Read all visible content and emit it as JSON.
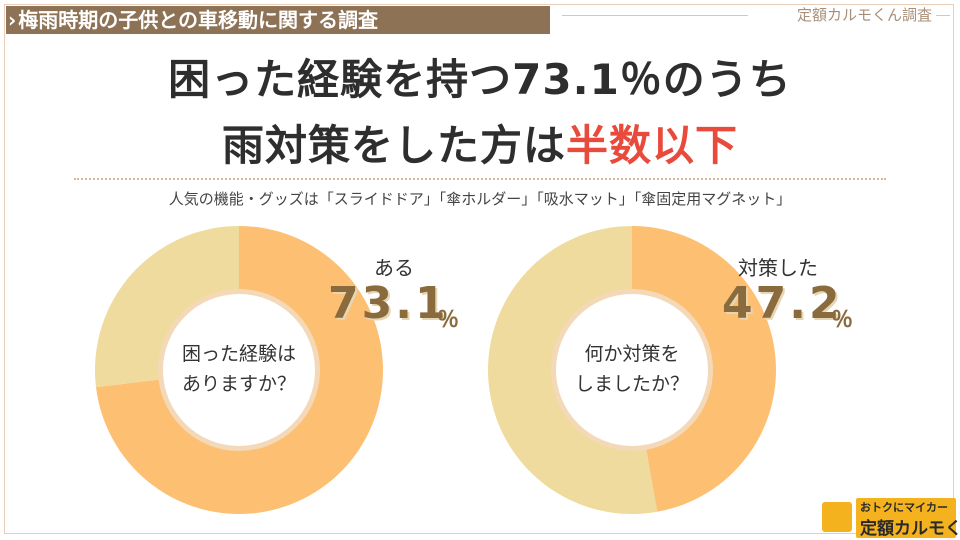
{
  "header": {
    "tag": "梅雨時期の子供との車移動に関する調査",
    "brand": "定額カルモくん調査"
  },
  "headline": {
    "line1": "困った経験を持つ73.1％のうち",
    "line2_prefix": "雨対策をした方は",
    "line2_highlight": "半数以下"
  },
  "subtitle": "人気の機能・グッズは「スライドドア」「傘ホルダー」「吸水マット」「傘固定用マグネット」",
  "colors": {
    "primary": "#fdbf72",
    "secondary": "#eedb9d",
    "highlight": "#e84a3c",
    "value_text": "#8a6b3e"
  },
  "chart_data": [
    {
      "type": "pie",
      "center_text": [
        "困った経験は",
        "ありますか？"
      ],
      "slices": [
        {
          "label": "ある",
          "value": 73.1,
          "color": "#fdbf72"
        },
        {
          "label": "",
          "value": 26.9,
          "color": "#eedb9d"
        }
      ],
      "callout": {
        "label": "ある",
        "value": "73.1",
        "unit": "％"
      }
    },
    {
      "type": "pie",
      "center_text": [
        "何か対策を",
        "しましたか？"
      ],
      "slices": [
        {
          "label": "対策した",
          "value": 47.2,
          "color": "#fdbf72"
        },
        {
          "label": "",
          "value": 52.8,
          "color": "#eedb9d"
        }
      ],
      "callout": {
        "label": "対策した",
        "value": "47.2",
        "unit": "％"
      }
    }
  ],
  "logo": {
    "line1": "おトクにマイカー",
    "line2": "定額カルモくん"
  }
}
